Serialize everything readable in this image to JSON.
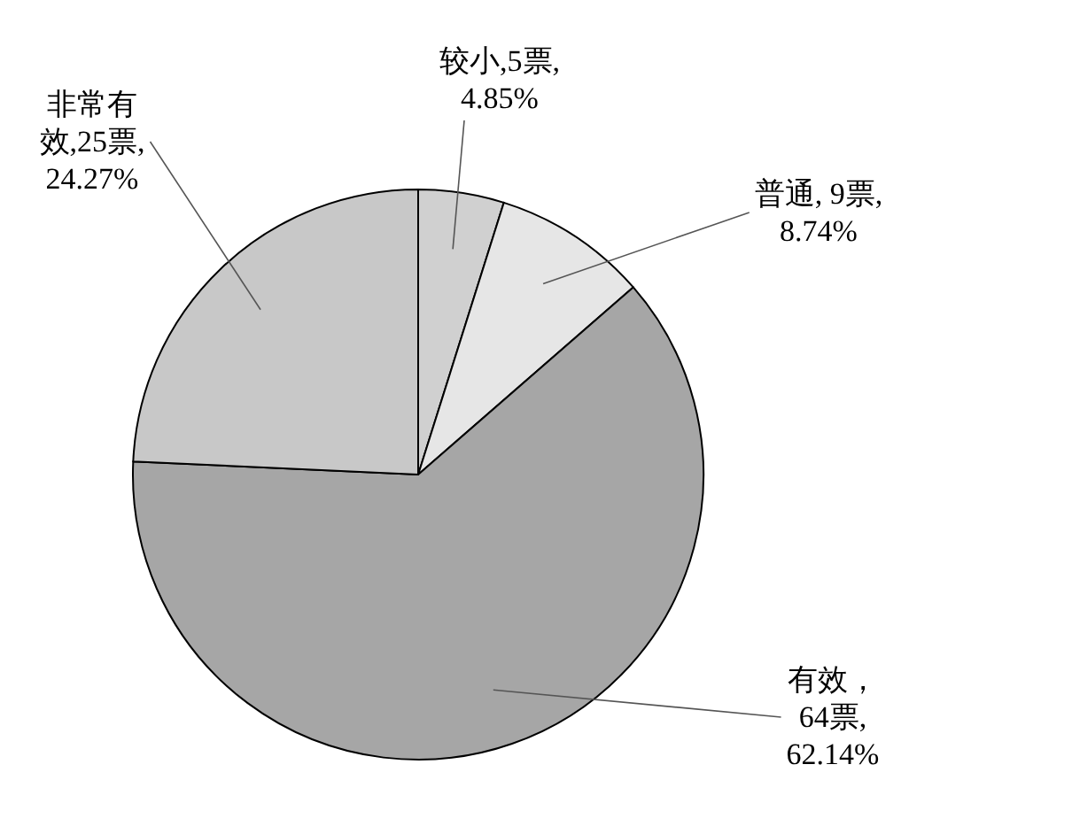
{
  "chart_data": {
    "type": "pie",
    "categories": [
      "较小,5票,4.85%",
      "普通, 9票,8.74%",
      "有效，64票,62.14%",
      "非常有效,25票,24.27%"
    ],
    "values": [
      5,
      9,
      64,
      25
    ],
    "colors": [
      "#d0d0d0",
      "#e6e6e6",
      "#a6a6a6",
      "#c8c8c8"
    ]
  }
}
